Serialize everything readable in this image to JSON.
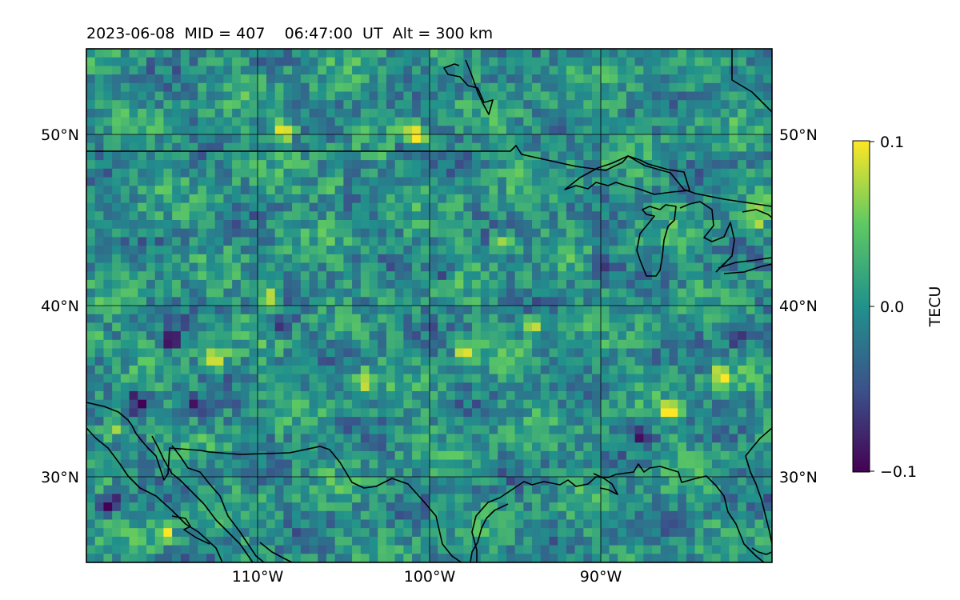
{
  "header": {
    "date": "2023-06-08",
    "mid_label": "MID = 407",
    "time": "06:47:00",
    "time_unit": "UT",
    "altitude": "Alt = 300 km"
  },
  "map": {
    "projection": "lat-lon",
    "lon_range": [
      -120,
      -80
    ],
    "lat_range": [
      25,
      55
    ],
    "gridlines": {
      "lons": [
        -110,
        -100,
        -90
      ],
      "lats": [
        30,
        40,
        50
      ]
    },
    "lon_labels": [
      "110°W",
      "100°W",
      "90°W"
    ],
    "lat_labels_left": [
      "50°N",
      "40°N",
      "30°N"
    ],
    "lat_labels_right": [
      "50°N",
      "40°N",
      "30°N"
    ],
    "coastline_color": "#000000",
    "grid_color": "#000000"
  },
  "colorbar": {
    "label": "TECU",
    "ticks": [
      "0.1",
      "0.0",
      "−0.1"
    ],
    "vmin": -0.1,
    "vmax": 0.1,
    "colormap": "viridis",
    "colors": [
      "#440154",
      "#3b528b",
      "#21918c",
      "#5ec962",
      "#fde725"
    ]
  },
  "chart_data": {
    "type": "heatmap",
    "title": "2023-06-08  MID = 407    06:47:00  UT  Alt = 300 km",
    "variable": "TECU",
    "x_unit": "longitude",
    "y_unit": "latitude",
    "xlim": [
      -120,
      -80
    ],
    "ylim": [
      25,
      55
    ],
    "clim": [
      -0.1,
      0.1
    ],
    "hotspots": [
      {
        "lon": -108.5,
        "lat": 50.3,
        "value": 0.1
      },
      {
        "lon": -100.8,
        "lat": 49.9,
        "value": 0.1
      },
      {
        "lon": -109.5,
        "lat": 40.5,
        "value": 0.1
      },
      {
        "lon": -98.0,
        "lat": 43.5,
        "value": 0.08
      },
      {
        "lon": -95.7,
        "lat": 43.7,
        "value": 0.1
      },
      {
        "lon": -97.8,
        "lat": 37.2,
        "value": 0.1
      },
      {
        "lon": -103.8,
        "lat": 35.5,
        "value": 0.1
      },
      {
        "lon": -112.5,
        "lat": 37.0,
        "value": 0.1
      },
      {
        "lon": -118.5,
        "lat": 33.0,
        "value": 0.1
      },
      {
        "lon": -119.5,
        "lat": 38.0,
        "value": 0.08
      },
      {
        "lon": -83.0,
        "lat": 35.8,
        "value": 0.1
      },
      {
        "lon": -81.0,
        "lat": 45.0,
        "value": 0.1
      },
      {
        "lon": -86.0,
        "lat": 33.8,
        "value": 0.09
      },
      {
        "lon": -94.0,
        "lat": 38.8,
        "value": 0.08
      },
      {
        "lon": -105.8,
        "lat": 47.0,
        "value": 0.08
      },
      {
        "lon": -115.5,
        "lat": 26.8,
        "value": 0.09
      }
    ],
    "coldspots": [
      {
        "lon": -118.5,
        "lat": 28.5,
        "value": -0.1
      },
      {
        "lon": -117.0,
        "lat": 34.5,
        "value": -0.09
      },
      {
        "lon": -101.5,
        "lat": 49.0,
        "value": -0.09
      },
      {
        "lon": -104.0,
        "lat": 40.0,
        "value": -0.08
      },
      {
        "lon": -115.0,
        "lat": 38.0,
        "value": -0.08
      },
      {
        "lon": -108.5,
        "lat": 39.0,
        "value": -0.08
      },
      {
        "lon": -90.0,
        "lat": 42.5,
        "value": -0.07
      },
      {
        "lon": -87.5,
        "lat": 32.5,
        "value": -0.08
      },
      {
        "lon": -82.0,
        "lat": 38.0,
        "value": -0.07
      },
      {
        "lon": -99.5,
        "lat": 42.0,
        "value": -0.07
      },
      {
        "lon": -113.5,
        "lat": 34.0,
        "value": -0.08
      }
    ]
  }
}
